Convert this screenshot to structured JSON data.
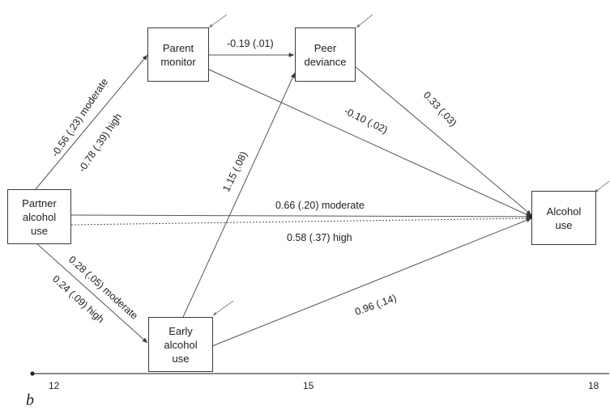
{
  "nodes": {
    "parent_monitor": [
      "Parent",
      "monitor"
    ],
    "peer_deviance": [
      "Peer",
      "deviance"
    ],
    "partner_alcohol_use": [
      "Partner",
      "alcohol",
      "use"
    ],
    "early_alcohol_use": [
      "Early",
      "alcohol",
      "use"
    ],
    "alcohol_use": [
      "Alcohol",
      "use"
    ]
  },
  "paths": {
    "partner_to_parent_moderate": "-0.56 (.23) moderate",
    "partner_to_parent_high": "-0.78 (.39) high",
    "parent_to_peer": "-0.19 (.01)",
    "parent_to_alcohol": "-0.10 (.02)",
    "peer_to_alcohol": "0.33 (.03)",
    "early_to_peer": "1.15 (.08)",
    "partner_to_alcohol_moderate": "0.66 (.20) moderate",
    "partner_to_alcohol_high": "0.58 (.37) high",
    "partner_to_early_moderate": "0.28 (.05) moderate",
    "partner_to_early_high": "0.24 (.09) high",
    "early_to_alcohol": "0.96 (.14)"
  },
  "timeline": {
    "ticks": [
      "12",
      "15",
      "18"
    ]
  },
  "panel_label": "b"
}
